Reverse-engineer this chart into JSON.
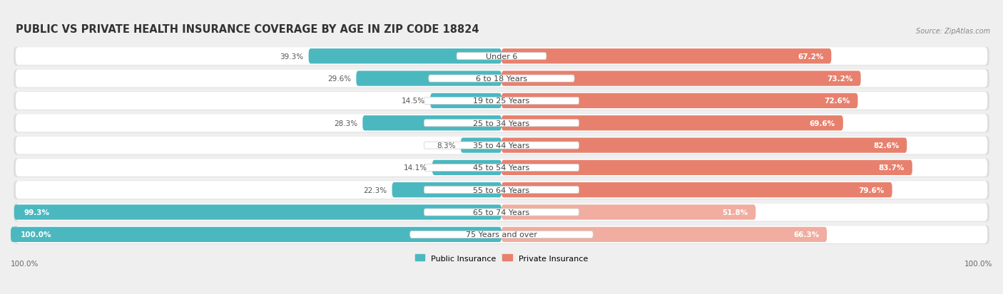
{
  "title": "PUBLIC VS PRIVATE HEALTH INSURANCE COVERAGE BY AGE IN ZIP CODE 18824",
  "source": "Source: ZipAtlas.com",
  "categories": [
    "Under 6",
    "6 to 18 Years",
    "19 to 25 Years",
    "25 to 34 Years",
    "35 to 44 Years",
    "45 to 54 Years",
    "55 to 64 Years",
    "65 to 74 Years",
    "75 Years and over"
  ],
  "public_values": [
    39.3,
    29.6,
    14.5,
    28.3,
    8.3,
    14.1,
    22.3,
    99.3,
    100.0
  ],
  "private_values": [
    67.2,
    73.2,
    72.6,
    69.6,
    82.6,
    83.7,
    79.6,
    51.8,
    66.3
  ],
  "private_colors": [
    "#E8806E",
    "#E8806E",
    "#E8806E",
    "#E8806E",
    "#E8806E",
    "#E8806E",
    "#E8806E",
    "#F0ADA0",
    "#F0ADA0"
  ],
  "public_color": "#4BB8C0",
  "private_color": "#E8806E",
  "private_color_light": "#F0ADA0",
  "bg_color": "#EFEFEF",
  "row_bg_color": "#FFFFFF",
  "shadow_color": "#DDDDDD",
  "title_fontsize": 10.5,
  "label_fontsize": 8.0,
  "value_fontsize": 7.5,
  "legend_fontsize": 8.0,
  "axis_label_fontsize": 7.5
}
